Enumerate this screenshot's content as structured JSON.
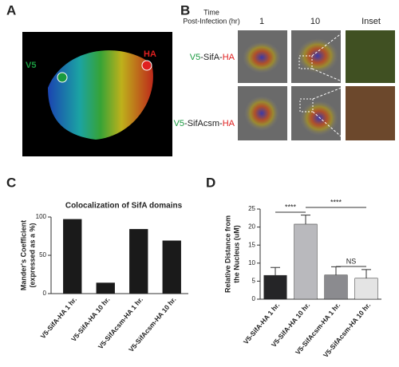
{
  "figure": {
    "panels": [
      "A",
      "B",
      "C",
      "D"
    ],
    "structure_labels": [
      "V5",
      "HA"
    ],
    "time_header": [
      "Time",
      "Post-Infection (hr)"
    ],
    "columns": [
      "1",
      "10",
      "Inset"
    ],
    "rows": [
      [
        "V5",
        "-SifA-",
        "HA"
      ],
      [
        "V5",
        "-SifAcsm-",
        "HA"
      ]
    ]
  },
  "chart_data": [
    {
      "type": "bar",
      "title": "Colocalization of SifA domains",
      "ylabel": [
        "Mander's Coefficient",
        "(expressed as a %)"
      ],
      "categories": [
        "V5-SifA-HA 1 hr.",
        "V5-SifA-HA 10 hr.",
        "V5-SifAcsm-HA 1 hr.",
        "V5-SifAcsm-HA 10 hr."
      ],
      "values": [
        97,
        14,
        84,
        69
      ],
      "colors": [
        "#1a1a1a",
        "#1a1a1a",
        "#1a1a1a",
        "#1a1a1a"
      ],
      "ylim": [
        0,
        100
      ],
      "yticks": [
        0,
        50,
        100
      ]
    },
    {
      "type": "bar",
      "ylabel": [
        "Relative Distance from",
        "the Nucleus (uM)"
      ],
      "categories": [
        "V5-SifA-HA 1 hr.",
        "V5-SifA-HA 10 hr.",
        "V5-SifAcsm-HA 1 hr.",
        "V5-SifAcsm-HA 10 hr."
      ],
      "values": [
        6.6,
        20.8,
        6.7,
        5.8
      ],
      "errors": [
        2.2,
        2.5,
        2.3,
        2.4
      ],
      "colors": [
        "#252527",
        "#b9b9bd",
        "#8b8b8f",
        "#e4e4e4"
      ],
      "ylim": [
        0,
        25
      ],
      "yticks": [
        0,
        5,
        10,
        15,
        20,
        25
      ],
      "annotations": [
        "****",
        "****",
        "NS"
      ]
    }
  ]
}
